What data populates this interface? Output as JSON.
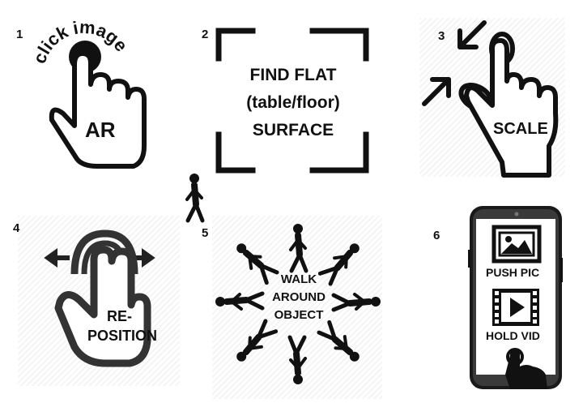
{
  "steps": [
    {
      "number": "1",
      "arc_text": "click image",
      "label": "AR",
      "icon": "tap-hand-icon"
    },
    {
      "number": "2",
      "lines": [
        "FIND FLAT",
        "(table/floor)",
        "SURFACE"
      ],
      "icon": "viewfinder-frame-icon"
    },
    {
      "number": "3",
      "label": "SCALE",
      "icon": "pinch-hand-icon"
    },
    {
      "number": "4",
      "lines": [
        "RE-",
        "POSITION"
      ],
      "icon": "drag-hand-icon"
    },
    {
      "number": "5",
      "lines": [
        "WALK",
        "AROUND",
        "OBJECT"
      ],
      "icon": "walking-figures-icon"
    },
    {
      "number": "6",
      "push_label": "PUSH PIC",
      "hold_label": "HOLD VID",
      "icon": "smartphone-icon"
    }
  ]
}
